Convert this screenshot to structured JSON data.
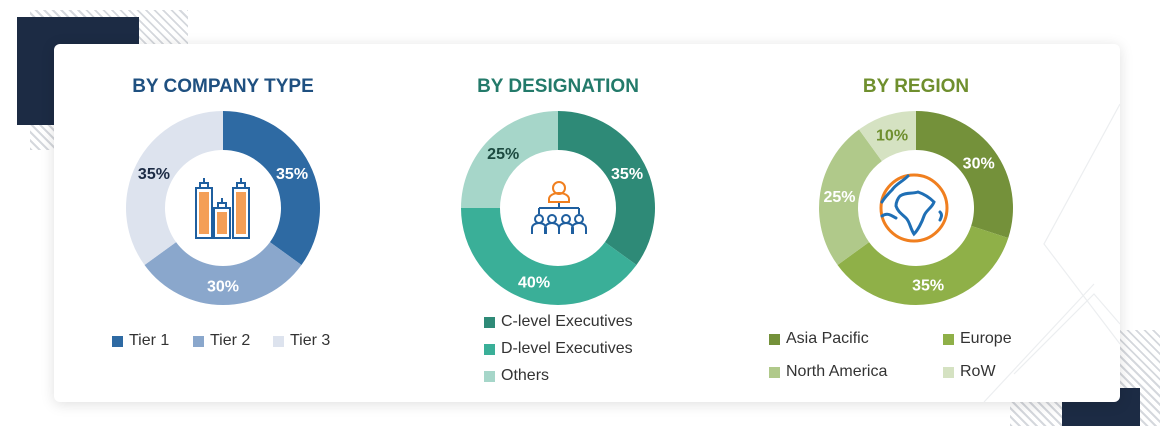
{
  "chart_data": [
    {
      "type": "pie",
      "title": "BY COMPANY TYPE",
      "title_color": "#1f5080",
      "categories": [
        "Tier 1",
        "Tier 2",
        "Tier 3"
      ],
      "values": [
        35,
        30,
        35
      ],
      "labels": [
        "35%",
        "30%",
        "35%"
      ],
      "colors": [
        "#2e6aa3",
        "#8aa7cc",
        "#dde3ee"
      ],
      "label_colors": [
        "#ffffff",
        "#ffffff",
        "#1c2b44"
      ],
      "legend": "bottom",
      "center_icon": "buildings-icon"
    },
    {
      "type": "pie",
      "title": "BY DESIGNATION",
      "title_color": "#237a6a",
      "categories": [
        "C-level Executives",
        "D-level Executives",
        "Others"
      ],
      "values": [
        35,
        40,
        25
      ],
      "labels": [
        "35%",
        "40%",
        "25%"
      ],
      "colors": [
        "#2e8a77",
        "#3aaf98",
        "#a6d6c9"
      ],
      "label_colors": [
        "#ffffff",
        "#ffffff",
        "#1c4a40"
      ],
      "legend": "bottom",
      "center_icon": "org-hierarchy-icon"
    },
    {
      "type": "pie",
      "title": "BY REGION",
      "title_color": "#6f8f2e",
      "categories": [
        "Asia Pacific",
        "Europe",
        "North America",
        "RoW"
      ],
      "values": [
        30,
        35,
        25,
        10
      ],
      "labels": [
        "30%",
        "35%",
        "25%",
        "10%"
      ],
      "colors": [
        "#74913a",
        "#8fb048",
        "#b0c98a",
        "#d5e2c2"
      ],
      "label_colors": [
        "#ffffff",
        "#ffffff",
        "#ffffff",
        "#6f8f2e"
      ],
      "legend": "bottom",
      "center_icon": "globe-icon"
    }
  ]
}
